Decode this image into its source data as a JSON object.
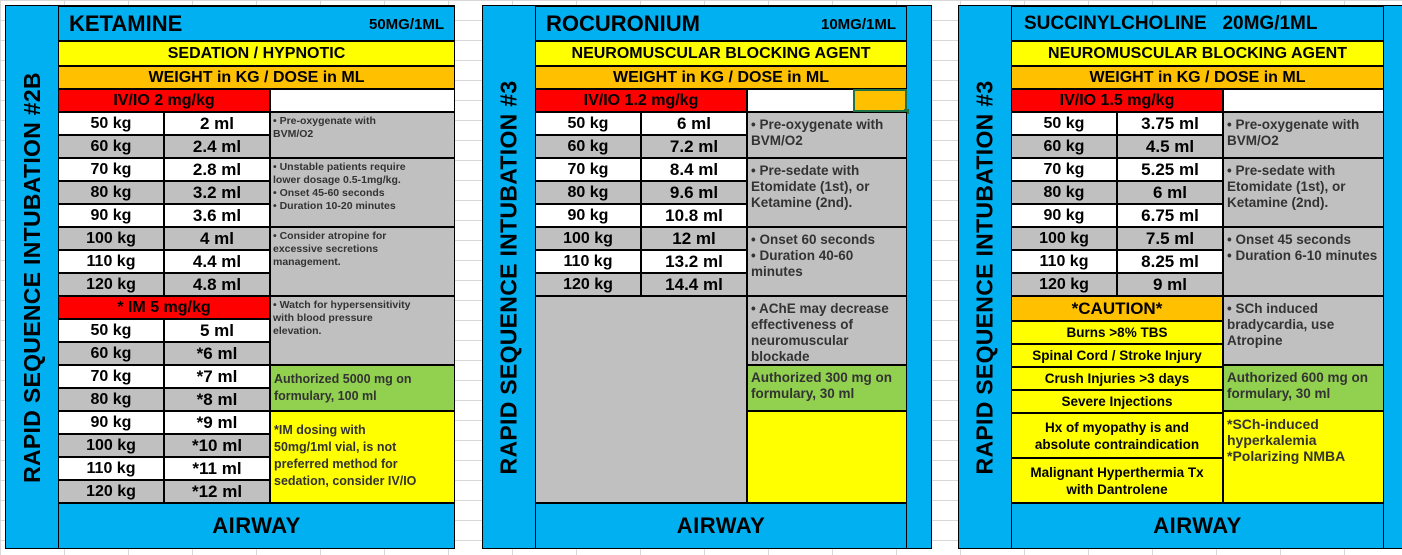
{
  "cards": [
    {
      "side_label": "RAPID SEQUENCE INTUBATION #2B",
      "drug": "KETAMINE",
      "concentration": "50MG/1ML",
      "category": "SEDATION / HYPNOTIC",
      "weight_header": "WEIGHT in KG / DOSE in ML",
      "route_header": "IV/IO 2 mg/kg",
      "rows": [
        {
          "weight": "50 kg",
          "dose": "2 ml"
        },
        {
          "weight": "60 kg",
          "dose": "2.4 ml"
        },
        {
          "weight": "70 kg",
          "dose": "2.8 ml"
        },
        {
          "weight": "80 kg",
          "dose": "3.2 ml"
        },
        {
          "weight": "90 kg",
          "dose": "3.6 ml"
        },
        {
          "weight": "100 kg",
          "dose": "4 ml"
        },
        {
          "weight": "110 kg",
          "dose": "4.4 ml"
        },
        {
          "weight": "120 kg",
          "dose": "4.8 ml"
        }
      ],
      "route2_header": "* IM 5 mg/kg",
      "rows2": [
        {
          "weight": "50 kg",
          "dose": "5 ml"
        },
        {
          "weight": "60 kg",
          "dose": "*6 ml"
        },
        {
          "weight": "70 kg",
          "dose": "*7 ml"
        },
        {
          "weight": "80 kg",
          "dose": "*8 ml"
        },
        {
          "weight": "90 kg",
          "dose": "*9 ml"
        },
        {
          "weight": "100 kg",
          "dose": "*10 ml"
        },
        {
          "weight": "110 kg",
          "dose": "*11 ml"
        },
        {
          "weight": "120 kg",
          "dose": "*12 ml"
        }
      ],
      "notes": [
        "• Pre-oxygenate with\nBVM/O2",
        "• Unstable patients require\nlower dosage 0.5-1mg/kg.\n• Onset 45-60 seconds\n• Duration 10-20 minutes",
        "• Consider atropine for\nexcessive secretions\nmanagement.",
        "• Watch for hypersensitivity\nwith blood pressure\nelevation."
      ],
      "authorized": "Authorized 5000 mg on\nformulary, 100 ml",
      "im_note": "*IM dosing with\n50mg/1ml vial, is not\npreferred method for\nsedation, consider IV/IO",
      "footer": "AIRWAY"
    },
    {
      "side_label": "RAPID SEQUENCE INTUBATION #3",
      "drug": "ROCURONIUM",
      "concentration": "10MG/1ML",
      "category": "NEUROMUSCULAR BLOCKING AGENT",
      "weight_header": "WEIGHT in KG / DOSE in ML",
      "route_header": "IV/IO 1.2 mg/kg",
      "rows": [
        {
          "weight": "50 kg",
          "dose": "6 ml"
        },
        {
          "weight": "60 kg",
          "dose": "7.2 ml"
        },
        {
          "weight": "70 kg",
          "dose": "8.4 ml"
        },
        {
          "weight": "80 kg",
          "dose": "9.6 ml"
        },
        {
          "weight": "90 kg",
          "dose": "10.8 ml"
        },
        {
          "weight": "100 kg",
          "dose": "12 ml"
        },
        {
          "weight": "110 kg",
          "dose": "13.2 ml"
        },
        {
          "weight": "120 kg",
          "dose": "14.4 ml"
        }
      ],
      "notes": [
        "• Pre-oxygenate with\nBVM/O2",
        "• Pre-sedate with\nEtomidate (1st), or\nKetamine (2nd).",
        "• Onset 60 seconds\n• Duration 40-60\nminutes",
        "• AChE may decrease\neffectiveness of\nneuromuscular\nblockade"
      ],
      "authorized": "Authorized 300 mg on\nformulary, 30 ml",
      "footer": "AIRWAY"
    },
    {
      "side_label": "RAPID SEQUENCE INTUBATION #3",
      "title": "SUCCINYLCHOLINE   20MG/1ML",
      "category": "NEUROMUSCULAR BLOCKING AGENT",
      "weight_header": "WEIGHT in KG / DOSE in ML",
      "route_header": "IV/IO 1.5 mg/kg",
      "rows": [
        {
          "weight": "50 kg",
          "dose": "3.75 ml"
        },
        {
          "weight": "60 kg",
          "dose": "4.5 ml"
        },
        {
          "weight": "70 kg",
          "dose": "5.25 ml"
        },
        {
          "weight": "80 kg",
          "dose": "6 ml"
        },
        {
          "weight": "90 kg",
          "dose": "6.75 ml"
        },
        {
          "weight": "100 kg",
          "dose": "7.5 ml"
        },
        {
          "weight": "110 kg",
          "dose": "8.25 ml"
        },
        {
          "weight": "120 kg",
          "dose": "9 ml"
        }
      ],
      "notes": [
        "• Pre-oxygenate with\nBVM/O2",
        "• Pre-sedate with\nEtomidate (1st), or\nKetamine (2nd).",
        "• Onset 45 seconds\n• Duration 6-10 minutes",
        "• SCh induced\nbradycardia, use\nAtropine"
      ],
      "caution_header": "*CAUTION*",
      "cautions": [
        "Burns >8% TBS",
        "Spinal Cord / Stroke Injury",
        "Crush Injuries >3 days",
        "Severe Injections",
        "Hx of myopathy is and\nabsolute contraindication",
        "Malignant Hyperthermia Tx\nwith Dantrolene"
      ],
      "authorized": "Authorized 600 mg on\nformulary, 30 ml",
      "sch_note": "*SCh-induced\nhyperkalemia\n*Polarizing NMBA",
      "footer": "AIRWAY"
    }
  ]
}
